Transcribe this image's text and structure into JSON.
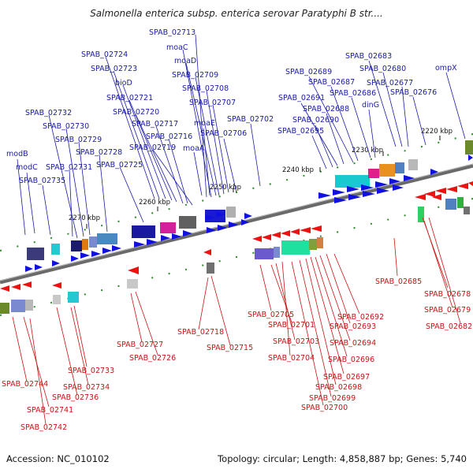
{
  "title": "Salmonella enterica subsp. enterica serovar Paratyphi B str....",
  "footer": {
    "accession": "Accession: NC_010102",
    "stats": "Topology: circular; Length: 4,858,887 bp; Genes: 5,740"
  },
  "colors": {
    "forward_label": "#1a1aa8",
    "reverse_label": "#c81414",
    "forward_gene": "#1010e0",
    "reverse_gene": "#ee1111",
    "backbone": "#777777"
  },
  "ticks": [
    "2220 kbp",
    "2230 kbp",
    "2240 kbp",
    "2250 kbp",
    "2260 kbp",
    "2270 kbp"
  ],
  "forward_labels": [
    "SPAB_02713",
    "moaC",
    "moaD",
    "SPAB_02709",
    "SPAB_02708",
    "SPAB_02707",
    "SPAB_02724",
    "SPAB_02723",
    "bioD",
    "SPAB_02721",
    "SPAB_02720",
    "SPAB_02717",
    "SPAB_02716",
    "SPAB_02719",
    "SPAB_02725",
    "SPAB_02728",
    "SPAB_02729",
    "SPAB_02730",
    "SPAB_02732",
    "modB",
    "modC",
    "SPAB_02731",
    "SPAB_02735",
    "moaE",
    "SPAB_02706",
    "moaA",
    "SPAB_02702",
    "SPAB_02683",
    "SPAB_02689",
    "SPAB_02680",
    "SPAB_02687",
    "SPAB_02677",
    "SPAB_02691",
    "SPAB_02686",
    "SPAB_02676",
    "ompX",
    "SPAB_02688",
    "dinG",
    "SPAB_02690",
    "SPAB_02695"
  ],
  "reverse_labels": [
    "SPAB_02685",
    "SPAB_02678",
    "SPAB_02679",
    "SPAB_02682",
    "SPAB_02692",
    "SPAB_02705",
    "SPAB_02693",
    "SPAB_02701",
    "SPAB_02694",
    "SPAB_02703",
    "SPAB_02696",
    "SPAB_02704",
    "SPAB_02697",
    "SPAB_02698",
    "SPAB_02699",
    "SPAB_02700",
    "SPAB_02718",
    "SPAB_02715",
    "SPAB_02727",
    "SPAB_02726",
    "SPAB_02733",
    "SPAB_02734",
    "SPAB_02736",
    "SPAB_02744",
    "SPAB_02741",
    "SPAB_02742"
  ]
}
